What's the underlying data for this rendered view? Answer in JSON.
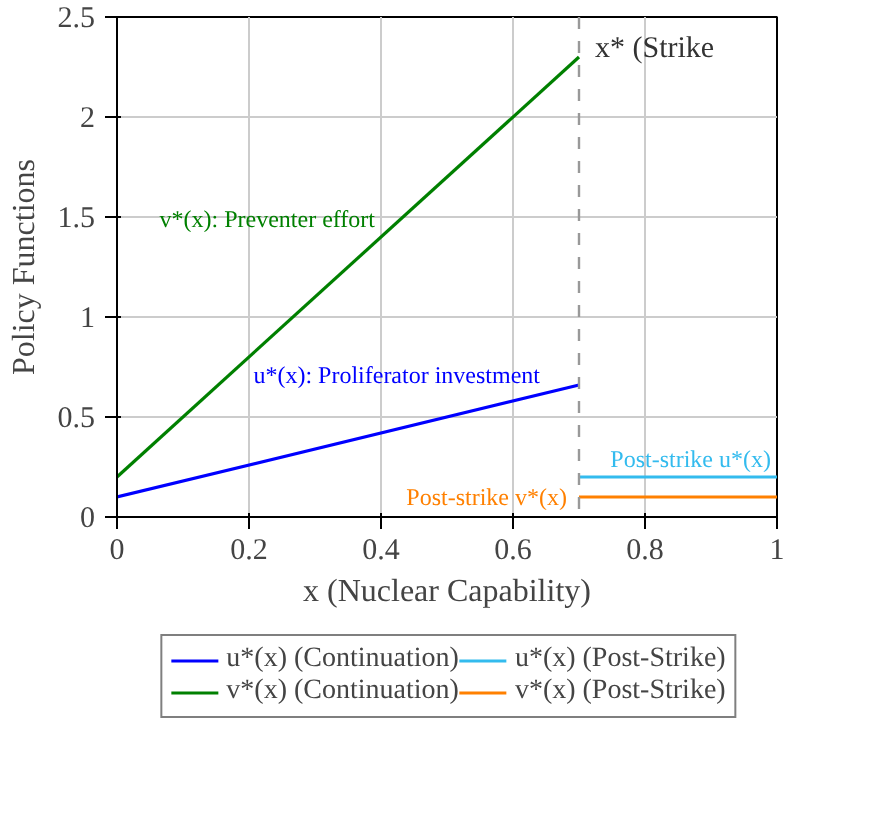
{
  "chart_data": {
    "type": "line",
    "xlabel": "x (Nuclear Capability)",
    "ylabel": "Policy Functions",
    "xlim": [
      0,
      1
    ],
    "xticks": [
      0,
      0.2,
      0.4,
      0.6,
      0.8,
      1
    ],
    "ylim": [
      0,
      2.5
    ],
    "yticks": [
      0,
      0.5,
      1,
      1.5,
      2,
      2.5
    ],
    "grid": true,
    "legend": "bottom",
    "line_style": "solid",
    "marker": "none",
    "series": [
      {
        "name": "u*(x) (Continuation)",
        "color": "#0000ff",
        "x": [
          0,
          0.7
        ],
        "values": [
          0.1,
          0.66
        ]
      },
      {
        "name": "v*(x) (Continuation)",
        "color": "#008000",
        "x": [
          0,
          0.7
        ],
        "values": [
          0.2,
          2.3
        ]
      },
      {
        "name": "u*(x) (Post-Strike)",
        "color": "#33bbee",
        "x": [
          0.7,
          1
        ],
        "values": [
          0.2,
          0.2
        ]
      },
      {
        "name": "v*(x) (Post-Strike)",
        "color": "#ff8000",
        "x": [
          0.7,
          1
        ],
        "values": [
          0.1,
          0.1
        ]
      }
    ],
    "ref_lines": [
      {
        "axis": "x",
        "value": 0.7,
        "label": "x* (Strike",
        "color": "#999999",
        "line_style": "dashed"
      }
    ],
    "annotations": [
      {
        "text": "u*(x): Proliferator investment",
        "x": 0.65,
        "y": 0.62
      },
      {
        "text": "v*(x): Preventer effort",
        "x": 0.4,
        "y": 1.4
      },
      {
        "text": "Post-strike u*(x)",
        "x": 1,
        "y": 0.2
      },
      {
        "text": "Post-strike v*(x)",
        "x": 0.7,
        "y": 0.1
      }
    ]
  }
}
